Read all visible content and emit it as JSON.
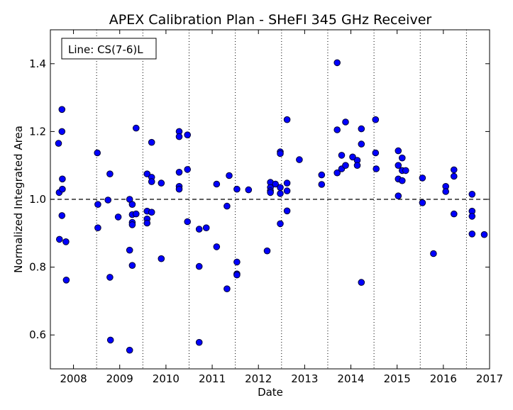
{
  "chart_data": {
    "type": "scatter",
    "title": "APEX Calibration Plan - SHeFI 345 GHz Receiver",
    "xlabel": "Date",
    "ylabel": "Normalized Integrated Area",
    "xlim": [
      2007.5,
      2017.0
    ],
    "ylim": [
      0.5,
      1.5
    ],
    "xticks": [
      2008,
      2009,
      2010,
      2011,
      2012,
      2013,
      2014,
      2015,
      2016,
      2017
    ],
    "xtick_labels": [
      "2008",
      "2009",
      "2010",
      "2011",
      "2012",
      "2013",
      "2014",
      "2015",
      "2016",
      "2017"
    ],
    "yticks": [
      0.6,
      0.8,
      1.0,
      1.2,
      1.4
    ],
    "ytick_labels": [
      "0.6",
      "0.8",
      "1.0",
      "1.2",
      "1.4"
    ],
    "reference_line": 1.0,
    "vertical_dotted_lines": [
      2008.5,
      2009.5,
      2010.5,
      2011.5,
      2012.5,
      2013.5,
      2014.5,
      2015.5,
      2016.5
    ],
    "legend": {
      "text": "Line: CS(7-6)L",
      "position": "top-left"
    },
    "marker_color": "#0000ff",
    "marker_edge": "#000033",
    "reference_color": "#000000",
    "points": [
      {
        "x": "2007-09-05",
        "y": 1.165
      },
      {
        "x": "2007-09-10",
        "y": 1.02
      },
      {
        "x": "2007-09-12",
        "y": 0.882
      },
      {
        "x": "2007-10-02",
        "y": 1.265
      },
      {
        "x": "2007-10-02",
        "y": 1.2
      },
      {
        "x": "2007-10-05",
        "y": 1.06
      },
      {
        "x": "2007-10-05",
        "y": 1.03
      },
      {
        "x": "2007-10-02",
        "y": 0.952
      },
      {
        "x": "2007-11-02",
        "y": 0.875
      },
      {
        "x": "2007-11-05",
        "y": 0.762
      },
      {
        "x": "2008-07-08",
        "y": 1.137
      },
      {
        "x": "2008-07-12",
        "y": 0.985
      },
      {
        "x": "2008-07-12",
        "y": 0.916
      },
      {
        "x": "2008-09-30",
        "y": 0.998
      },
      {
        "x": "2008-10-15",
        "y": 1.075
      },
      {
        "x": "2008-10-15",
        "y": 0.77
      },
      {
        "x": "2008-10-20",
        "y": 0.585
      },
      {
        "x": "2008-12-20",
        "y": 0.948
      },
      {
        "x": "2009-03-20",
        "y": 1.0
      },
      {
        "x": "2009-03-20",
        "y": 0.85
      },
      {
        "x": "2009-03-20",
        "y": 0.555
      },
      {
        "x": "2009-04-10",
        "y": 0.985
      },
      {
        "x": "2009-04-10",
        "y": 0.955
      },
      {
        "x": "2009-04-10",
        "y": 0.932
      },
      {
        "x": "2009-04-10",
        "y": 0.925
      },
      {
        "x": "2009-04-10",
        "y": 0.805
      },
      {
        "x": "2009-05-10",
        "y": 1.21
      },
      {
        "x": "2009-05-10",
        "y": 0.957
      },
      {
        "x": "2009-08-05",
        "y": 1.075
      },
      {
        "x": "2009-08-05",
        "y": 0.965
      },
      {
        "x": "2009-08-05",
        "y": 0.942
      },
      {
        "x": "2009-08-05",
        "y": 0.93
      },
      {
        "x": "2009-09-10",
        "y": 1.168
      },
      {
        "x": "2009-09-10",
        "y": 1.065
      },
      {
        "x": "2009-09-10",
        "y": 1.052
      },
      {
        "x": "2009-09-10",
        "y": 0.962
      },
      {
        "x": "2009-11-25",
        "y": 1.048
      },
      {
        "x": "2009-11-25",
        "y": 0.825
      },
      {
        "x": "2010-04-15",
        "y": 1.2
      },
      {
        "x": "2010-04-15",
        "y": 1.185
      },
      {
        "x": "2010-04-15",
        "y": 1.08
      },
      {
        "x": "2010-04-15",
        "y": 1.038
      },
      {
        "x": "2010-04-15",
        "y": 1.03
      },
      {
        "x": "2010-06-20",
        "y": 1.19
      },
      {
        "x": "2010-06-20",
        "y": 1.088
      },
      {
        "x": "2010-06-20",
        "y": 0.934
      },
      {
        "x": "2010-09-20",
        "y": 0.912
      },
      {
        "x": "2010-09-20",
        "y": 0.802
      },
      {
        "x": "2010-09-20",
        "y": 0.578
      },
      {
        "x": "2010-11-15",
        "y": 0.916
      },
      {
        "x": "2011-02-05",
        "y": 1.045
      },
      {
        "x": "2011-02-05",
        "y": 0.86
      },
      {
        "x": "2011-04-28",
        "y": 0.98
      },
      {
        "x": "2011-04-28",
        "y": 0.736
      },
      {
        "x": "2011-05-15",
        "y": 1.07
      },
      {
        "x": "2011-07-15",
        "y": 1.03
      },
      {
        "x": "2011-07-15",
        "y": 0.815
      },
      {
        "x": "2011-07-15",
        "y": 0.78
      },
      {
        "x": "2011-07-15",
        "y": 0.777
      },
      {
        "x": "2011-10-15",
        "y": 1.028
      },
      {
        "x": "2012-03-10",
        "y": 0.848
      },
      {
        "x": "2012-04-05",
        "y": 1.05
      },
      {
        "x": "2012-04-05",
        "y": 1.035
      },
      {
        "x": "2012-04-05",
        "y": 1.025
      },
      {
        "x": "2012-04-05",
        "y": 1.02
      },
      {
        "x": "2012-05-15",
        "y": 1.045
      },
      {
        "x": "2012-06-22",
        "y": 1.14
      },
      {
        "x": "2012-06-22",
        "y": 1.135
      },
      {
        "x": "2012-06-22",
        "y": 1.035
      },
      {
        "x": "2012-06-22",
        "y": 1.017
      },
      {
        "x": "2012-06-22",
        "y": 0.928
      },
      {
        "x": "2012-08-15",
        "y": 1.235
      },
      {
        "x": "2012-08-15",
        "y": 1.048
      },
      {
        "x": "2012-08-15",
        "y": 1.025
      },
      {
        "x": "2012-08-15",
        "y": 0.966
      },
      {
        "x": "2012-11-20",
        "y": 1.117
      },
      {
        "x": "2013-05-15",
        "y": 1.072
      },
      {
        "x": "2013-05-15",
        "y": 1.044
      },
      {
        "x": "2013-09-15",
        "y": 1.403
      },
      {
        "x": "2013-09-15",
        "y": 1.205
      },
      {
        "x": "2013-09-15",
        "y": 1.078
      },
      {
        "x": "2013-10-20",
        "y": 1.13
      },
      {
        "x": "2013-10-20",
        "y": 1.09
      },
      {
        "x": "2013-11-20",
        "y": 1.228
      },
      {
        "x": "2013-11-20",
        "y": 1.1
      },
      {
        "x": "2014-01-15",
        "y": 1.125
      },
      {
        "x": "2014-02-20",
        "y": 1.115
      },
      {
        "x": "2014-02-20",
        "y": 1.1
      },
      {
        "x": "2014-03-25",
        "y": 1.208
      },
      {
        "x": "2014-03-25",
        "y": 1.163
      },
      {
        "x": "2014-03-25",
        "y": 0.755
      },
      {
        "x": "2014-07-15",
        "y": 1.235
      },
      {
        "x": "2014-07-15",
        "y": 1.137
      },
      {
        "x": "2014-07-20",
        "y": 1.09
      },
      {
        "x": "2015-01-10",
        "y": 1.143
      },
      {
        "x": "2015-01-10",
        "y": 1.1
      },
      {
        "x": "2015-01-10",
        "y": 1.06
      },
      {
        "x": "2015-01-10",
        "y": 1.01
      },
      {
        "x": "2015-02-10",
        "y": 1.122
      },
      {
        "x": "2015-02-10",
        "y": 1.085
      },
      {
        "x": "2015-02-10",
        "y": 1.055
      },
      {
        "x": "2015-03-10",
        "y": 1.085
      },
      {
        "x": "2015-07-20",
        "y": 1.063
      },
      {
        "x": "2015-07-20",
        "y": 0.99
      },
      {
        "x": "2015-10-15",
        "y": 0.84
      },
      {
        "x": "2016-01-20",
        "y": 1.038
      },
      {
        "x": "2016-01-20",
        "y": 1.023
      },
      {
        "x": "2016-03-25",
        "y": 1.087
      },
      {
        "x": "2016-03-25",
        "y": 1.068
      },
      {
        "x": "2016-03-25",
        "y": 0.957
      },
      {
        "x": "2016-08-15",
        "y": 1.015
      },
      {
        "x": "2016-08-15",
        "y": 0.965
      },
      {
        "x": "2016-08-15",
        "y": 0.95
      },
      {
        "x": "2016-08-15",
        "y": 0.898
      },
      {
        "x": "2016-11-20",
        "y": 0.896
      }
    ]
  }
}
